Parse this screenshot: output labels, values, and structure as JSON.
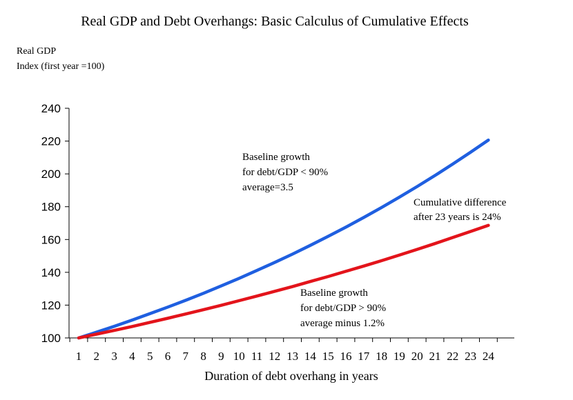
{
  "chart_data": {
    "type": "line",
    "title": "Real GDP and Debt Overhangs: Basic Calculus of Cumulative Effects",
    "ylabel_line1": "Real GDP",
    "ylabel_line2": "Index (first year =100)",
    "xlabel": "Duration  of debt overhang  in  years",
    "x": [
      1,
      2,
      3,
      4,
      5,
      6,
      7,
      8,
      9,
      10,
      11,
      12,
      13,
      14,
      15,
      16,
      17,
      18,
      19,
      20,
      21,
      22,
      23,
      24
    ],
    "ylim": [
      100,
      240
    ],
    "yticks": [
      100,
      120,
      140,
      160,
      180,
      200,
      220,
      240
    ],
    "grid": false,
    "series": [
      {
        "color": "#1f5fe0",
        "values": [
          100.0,
          103.5,
          107.1,
          110.9,
          114.8,
          118.8,
          122.9,
          127.2,
          131.7,
          136.3,
          141.1,
          146.0,
          151.1,
          156.4,
          161.9,
          167.5,
          173.4,
          179.5,
          185.8,
          192.3,
          199.0,
          206.0,
          213.2,
          220.6
        ]
      },
      {
        "color": "#e3141b",
        "values": [
          100.0,
          102.3,
          104.6,
          107.0,
          109.5,
          112.0,
          114.6,
          117.2,
          119.9,
          122.7,
          125.5,
          128.4,
          131.3,
          134.4,
          137.4,
          140.6,
          143.8,
          147.1,
          150.5,
          154.0,
          157.5,
          161.2,
          164.9,
          168.6
        ]
      }
    ],
    "annotations": {
      "blue_line1": "Baseline growth",
      "blue_line2": "for debt/GDP < 90%",
      "blue_line3": "average=3.5",
      "diff_line1": "Cumulative difference",
      "diff_line2": "after 23 years is 24%",
      "red_line1": "Baseline growth",
      "red_line2": "for debt/GDP > 90%",
      "red_line3": "average minus  1.2%"
    }
  }
}
